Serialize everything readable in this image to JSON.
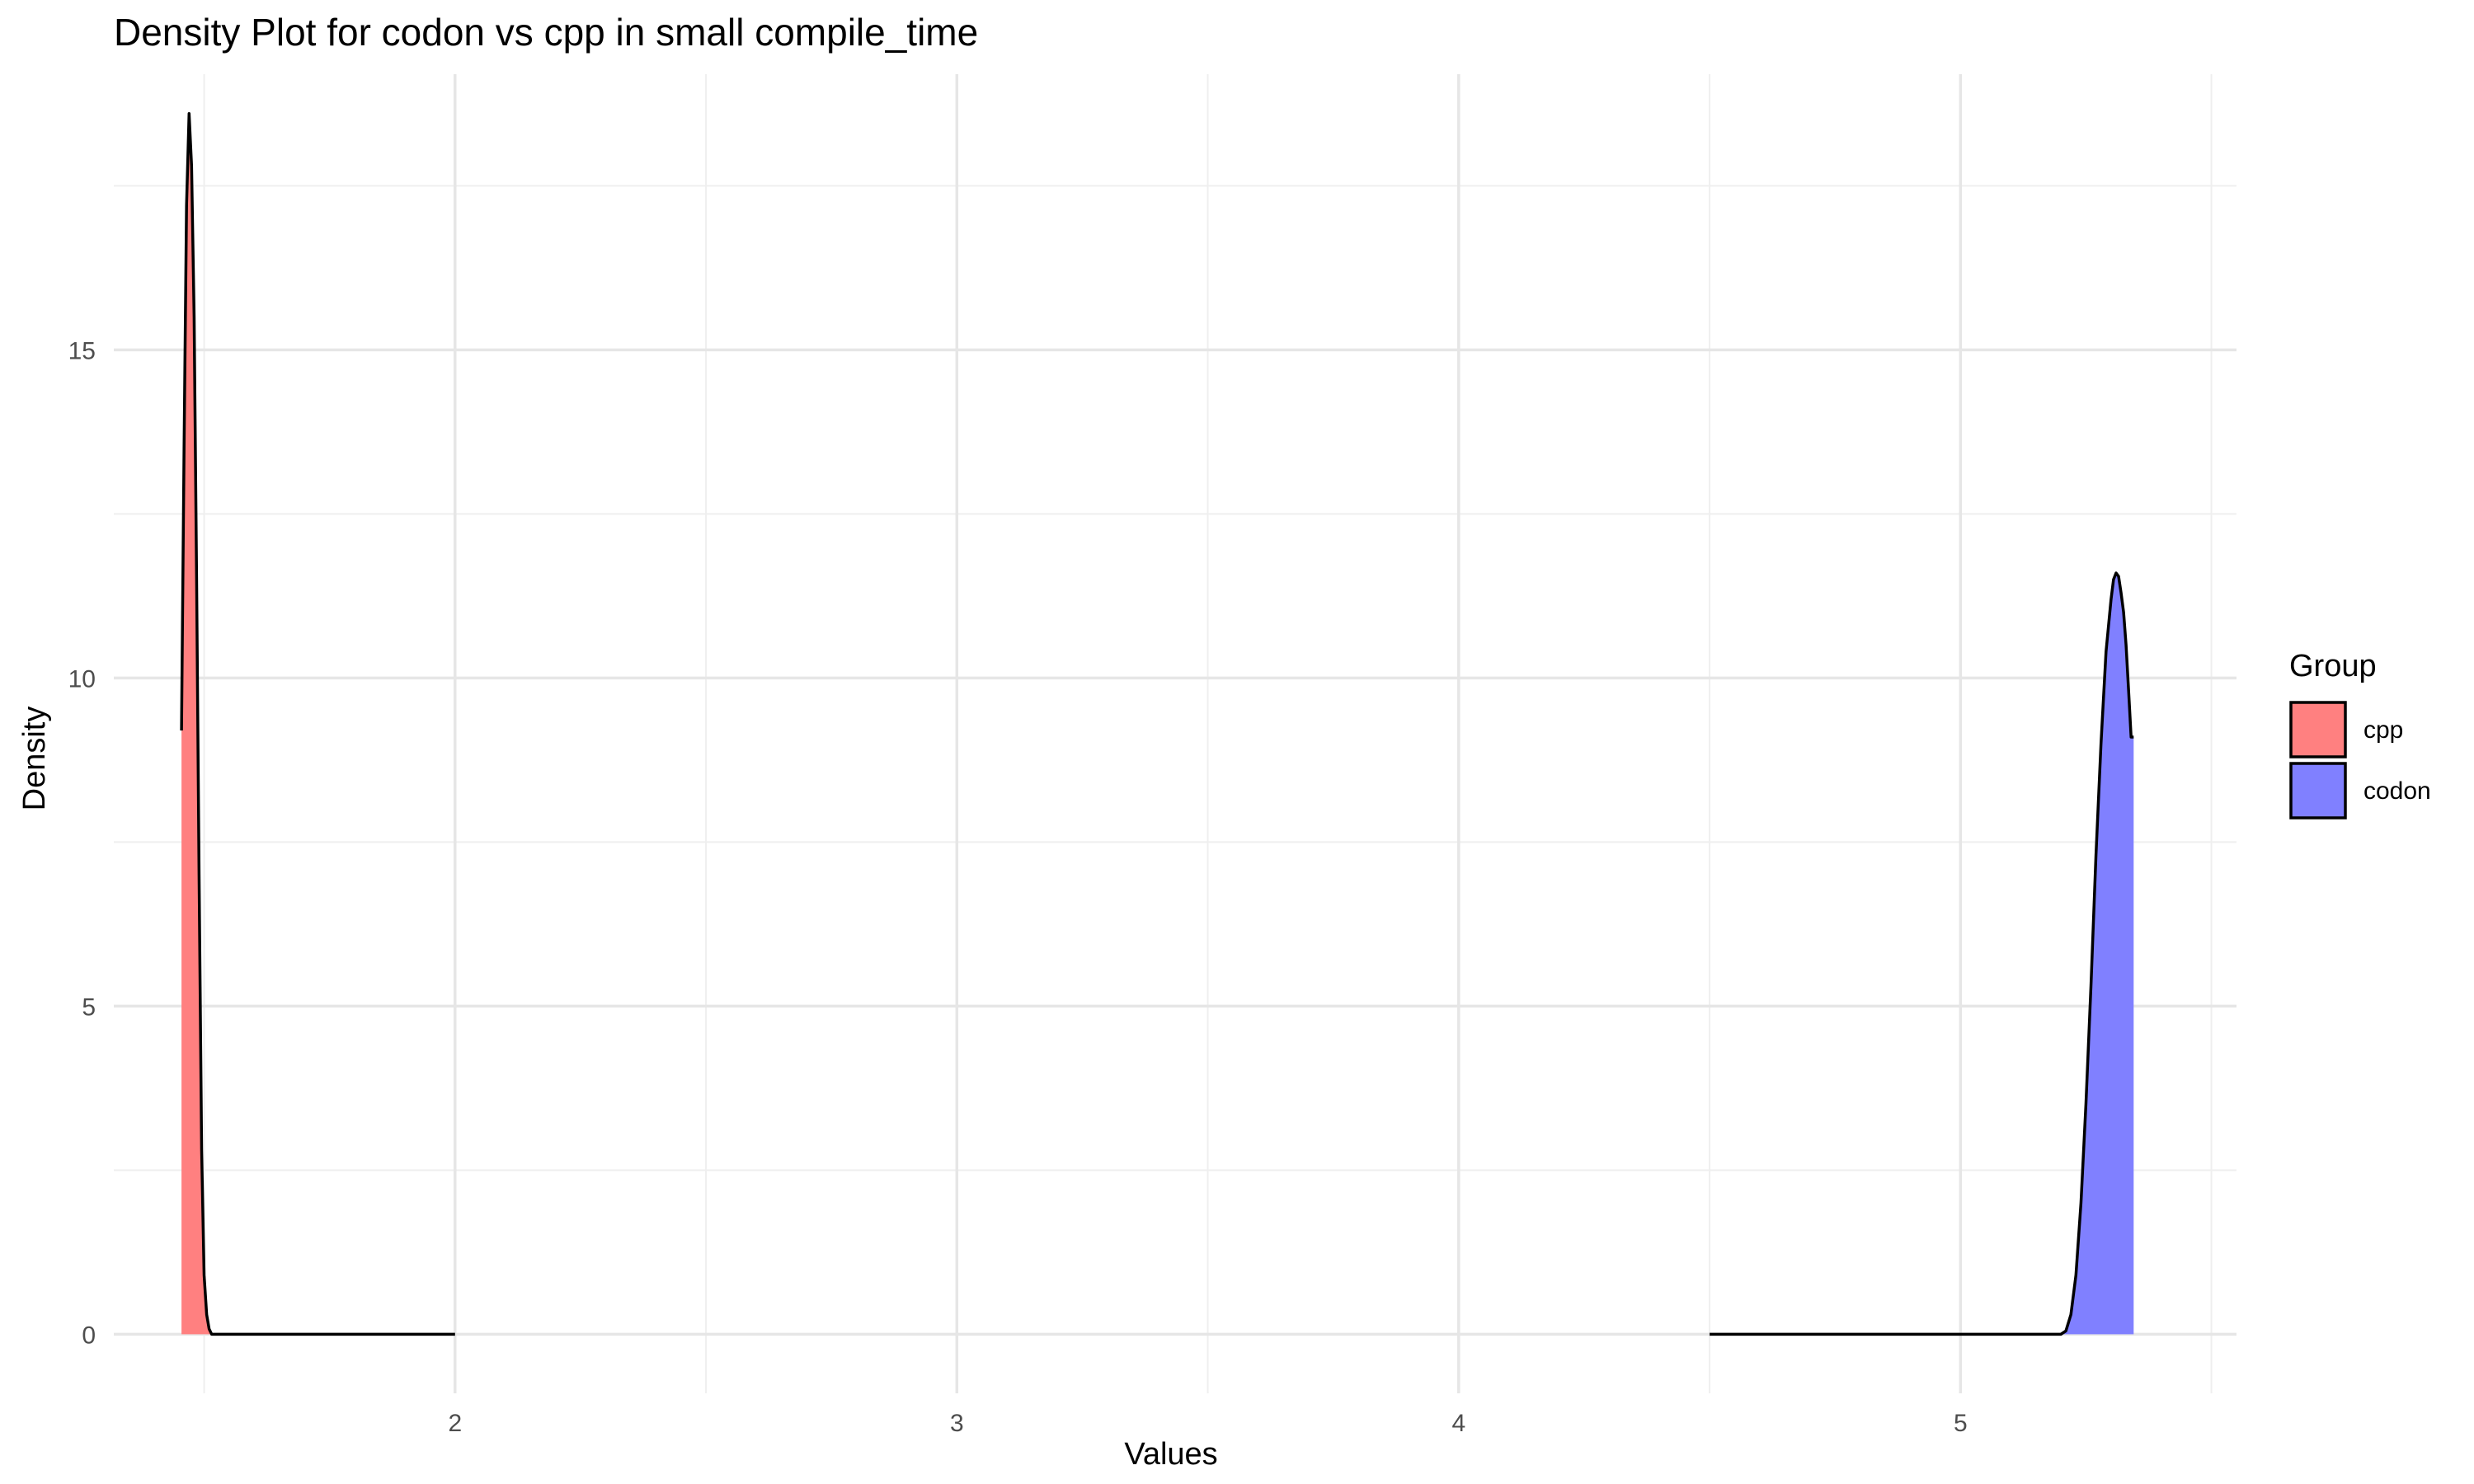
{
  "chart_data": {
    "type": "area",
    "title": "Density Plot for codon vs cpp in small compile_time",
    "xlabel": "Values",
    "ylabel": "Density",
    "xlim": [
      1.32,
      5.55
    ],
    "ylim": [
      -0.9,
      19.2
    ],
    "x_ticks": [
      2,
      3,
      4,
      5
    ],
    "x_minor_ticks": [
      1.5,
      2.5,
      3.5,
      4.5,
      5.5
    ],
    "y_ticks": [
      0,
      5,
      10,
      15
    ],
    "y_minor_ticks": [
      2.5,
      7.5,
      12.5,
      17.5
    ],
    "grid": true,
    "legend": {
      "title": "Group",
      "position": "right"
    },
    "series": [
      {
        "name": "cpp",
        "color": "#F8766D",
        "fill": "#FF8080",
        "x": [
          1.455,
          1.46,
          1.465,
          1.47,
          1.475,
          1.48,
          1.485,
          1.49,
          1.495,
          1.5,
          1.505,
          1.51,
          1.515,
          1.52,
          1.525,
          1.53,
          1.54,
          1.55,
          1.7,
          2.0
        ],
        "y": [
          9.2,
          13.5,
          17.2,
          18.6,
          17.8,
          15.5,
          11.5,
          7.0,
          2.8,
          0.9,
          0.3,
          0.08,
          0.0,
          0.0,
          0.0,
          0.0,
          0.0,
          0.0,
          0.0,
          0.0
        ]
      },
      {
        "name": "codon",
        "color": "#8080FF",
        "fill": "#8080FF",
        "x": [
          4.5,
          5.0,
          5.2,
          5.21,
          5.22,
          5.23,
          5.24,
          5.25,
          5.26,
          5.27,
          5.28,
          5.29,
          5.3,
          5.305,
          5.31,
          5.315,
          5.32,
          5.325,
          5.33,
          5.335,
          5.34,
          5.345
        ],
        "y": [
          0.0,
          0.0,
          0.0,
          0.05,
          0.3,
          0.9,
          2.0,
          3.5,
          5.3,
          7.3,
          9.0,
          10.4,
          11.2,
          11.5,
          11.6,
          11.55,
          11.3,
          11.0,
          10.5,
          9.8,
          9.1,
          9.1
        ]
      }
    ]
  }
}
